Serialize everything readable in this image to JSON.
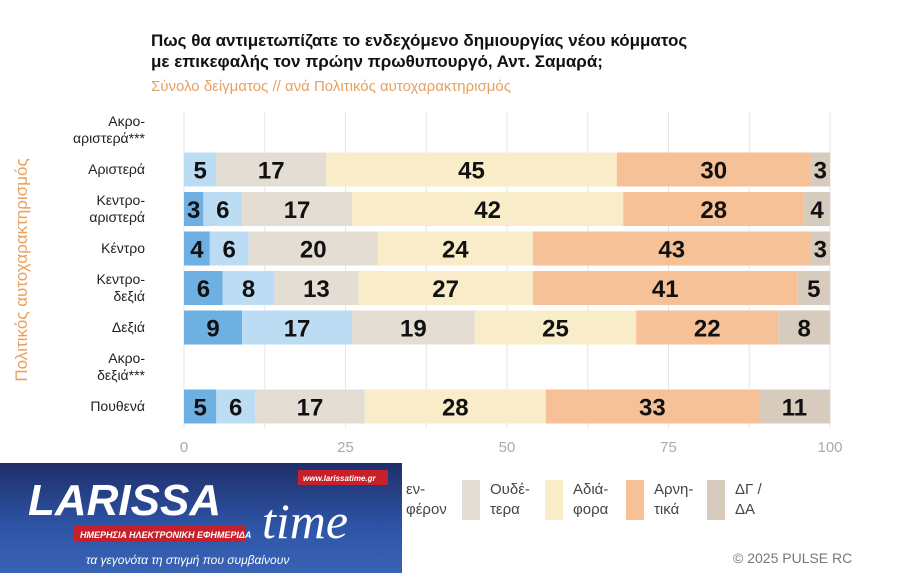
{
  "title": [
    "Πως θα αντιμετωπίζατε το ενδεχόμενο δημιουργίας νέου κόμματος",
    "με επικεφαλής τον πρώην πρωθυπουργό, Αντ. Σαμαρά;"
  ],
  "subtitle": "Σύνολο δείγματος // ανά Πολιτικός αυτοχαρακτηρισμός",
  "copyright": "© 2025 PULSE RC",
  "logo": {
    "name": "LARISSA time",
    "url": "www.larissatime.gr",
    "tagline": "ΗΜΕΡΗΣΙΑ ΗΛΕΚΤΡΟΝΙΚΗ ΕΦΗΜΕΡΙΔΑ",
    "slogan": "τα γεγονότα τη στιγμή που συμβαίνουν"
  },
  "chart_data": {
    "type": "bar",
    "orientation": "horizontal-stacked",
    "ylabel": "Πολιτικός αυτοχαρακτηρισμός",
    "xlim": [
      0,
      100
    ],
    "xticks": [
      "0",
      "25",
      "50",
      "75",
      "100"
    ],
    "grid": true,
    "legend_position": "bottom",
    "categories": [
      [
        "Ακρο-",
        "αριστερά***"
      ],
      [
        "Αριστερά"
      ],
      [
        "Κεντρο-",
        "αριστερά"
      ],
      [
        "Κέντρο"
      ],
      [
        "Κεντρο-",
        "δεξιά"
      ],
      [
        "Δεξιά"
      ],
      [
        "Ακρο-",
        "δεξιά***"
      ],
      [
        "Πουθενά"
      ]
    ],
    "series": [
      {
        "color": "#6eb0e2",
        "values": [
          null,
          0,
          3,
          4,
          6,
          9,
          null,
          5
        ]
      },
      {
        "name": "…εν- …φέρον",
        "legend_lines": [
          "εν-",
          "φέρον"
        ],
        "color": "#bcdcf4",
        "values": [
          null,
          5,
          6,
          6,
          8,
          17,
          null,
          6
        ]
      },
      {
        "name": "Ουδέτερα",
        "legend_lines": [
          "Ουδέ-",
          "τερα"
        ],
        "color": "#e4ddd3",
        "values": [
          null,
          17,
          17,
          20,
          13,
          19,
          null,
          17
        ]
      },
      {
        "name": "Αδιάφορα",
        "legend_lines": [
          "Αδιά-",
          "φορα"
        ],
        "color": "#f8edc8",
        "values": [
          null,
          45,
          42,
          24,
          27,
          25,
          null,
          28
        ]
      },
      {
        "name": "Αρνητικά",
        "legend_lines": [
          "Αρνη-",
          "τικά"
        ],
        "color": "#f6c196",
        "values": [
          null,
          30,
          28,
          43,
          41,
          22,
          null,
          33
        ]
      },
      {
        "name": "ΔΓ / ΔΑ",
        "legend_lines": [
          "ΔΓ /",
          "ΔΑ"
        ],
        "color": "#d6cbbd",
        "values": [
          null,
          3,
          4,
          3,
          5,
          8,
          null,
          11
        ]
      }
    ]
  }
}
